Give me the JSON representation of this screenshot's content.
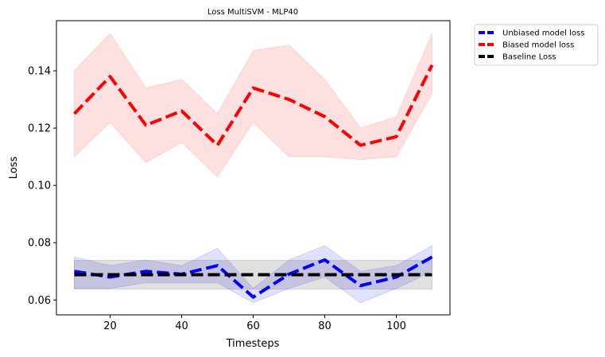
{
  "chart_data": {
    "type": "line",
    "title": "Loss MultiSVM - MLP40",
    "xlabel": "Timesteps",
    "ylabel": "Loss",
    "xlim": [
      5,
      115
    ],
    "ylim": [
      0.0548,
      0.1575
    ],
    "xticks": [
      20,
      40,
      60,
      80,
      100
    ],
    "yticks": [
      0.06,
      0.08,
      0.1,
      0.12,
      0.14
    ],
    "ytick_labels": [
      "0.06",
      "0.08",
      "0.10",
      "0.12",
      "0.14"
    ],
    "grid": false,
    "legend_placement": "outside-top-right",
    "x": [
      10,
      20,
      30,
      40,
      50,
      60,
      70,
      80,
      90,
      100,
      110
    ],
    "series": [
      {
        "name": "Unbiased model loss",
        "color": "#0000ff",
        "style": "dashed",
        "values": [
          0.07,
          0.068,
          0.07,
          0.069,
          0.072,
          0.061,
          0.069,
          0.074,
          0.065,
          0.068,
          0.075
        ],
        "band_upper": [
          0.075,
          0.072,
          0.074,
          0.072,
          0.078,
          0.064,
          0.074,
          0.079,
          0.07,
          0.072,
          0.079
        ],
        "band_lower": [
          0.064,
          0.064,
          0.066,
          0.066,
          0.066,
          0.059,
          0.064,
          0.068,
          0.059,
          0.064,
          0.07
        ]
      },
      {
        "name": "Biased model loss",
        "color": "#ff0000",
        "style": "dashed",
        "values": [
          0.125,
          0.138,
          0.121,
          0.126,
          0.114,
          0.134,
          0.13,
          0.124,
          0.114,
          0.117,
          0.142
        ],
        "band_upper": [
          0.14,
          0.153,
          0.134,
          0.137,
          0.125,
          0.147,
          0.149,
          0.137,
          0.12,
          0.124,
          0.153
        ],
        "band_lower": [
          0.11,
          0.122,
          0.108,
          0.115,
          0.103,
          0.122,
          0.11,
          0.11,
          0.109,
          0.11,
          0.132
        ]
      },
      {
        "name": "Baseline Loss",
        "color": "#000000",
        "style": "dashed",
        "values": [
          0.0688,
          0.0688,
          0.0688,
          0.0688,
          0.0688,
          0.0688,
          0.0688,
          0.0688,
          0.0688,
          0.0688,
          0.0688
        ],
        "band_upper": [
          0.0738,
          0.0738,
          0.0738,
          0.0738,
          0.0738,
          0.0738,
          0.0738,
          0.0738,
          0.0738,
          0.0738,
          0.0738
        ],
        "band_lower": [
          0.0638,
          0.0638,
          0.0638,
          0.0638,
          0.0638,
          0.0638,
          0.0638,
          0.0638,
          0.0638,
          0.0638,
          0.0638
        ]
      }
    ]
  }
}
